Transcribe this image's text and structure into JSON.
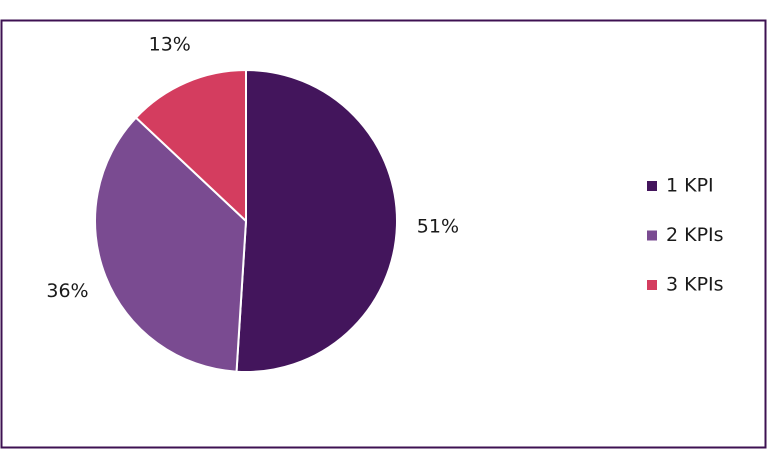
{
  "chart_data": {
    "type": "pie",
    "categories": [
      "1 KPI",
      "2 KPIs",
      "3 KPIs"
    ],
    "values": [
      51,
      36,
      13
    ],
    "value_labels": [
      "51%",
      "36%",
      "13%"
    ],
    "colors": [
      "#43155c",
      "#7a4b91",
      "#d43d5f"
    ],
    "legend": "right"
  }
}
